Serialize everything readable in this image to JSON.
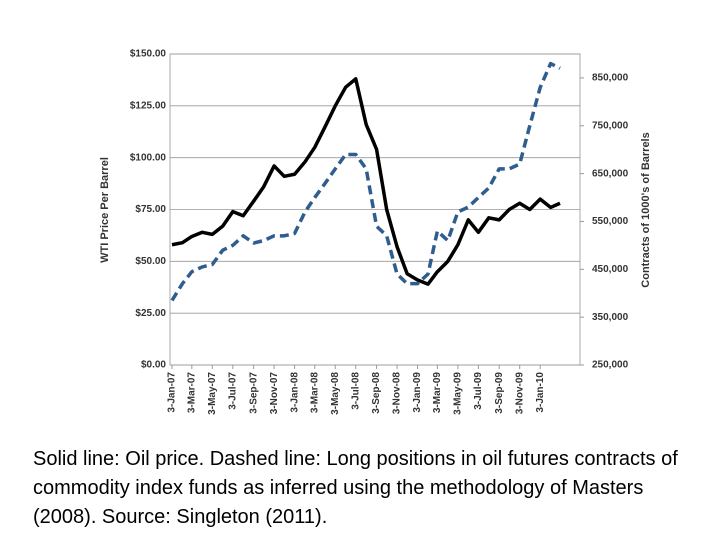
{
  "chart_data": {
    "type": "line",
    "x": [
      "3-Jan-07",
      "3-Feb-07",
      "3-Mar-07",
      "3-Apr-07",
      "3-May-07",
      "3-Jun-07",
      "3-Jul-07",
      "3-Aug-07",
      "3-Sep-07",
      "3-Oct-07",
      "3-Nov-07",
      "3-Dec-07",
      "3-Jan-08",
      "3-Feb-08",
      "3-Mar-08",
      "3-Apr-08",
      "3-May-08",
      "3-Jun-08",
      "3-Jul-08",
      "3-Aug-08",
      "3-Sep-08",
      "3-Oct-08",
      "3-Nov-08",
      "3-Dec-08",
      "3-Jan-09",
      "3-Feb-09",
      "3-Mar-09",
      "3-Apr-09",
      "3-May-09",
      "3-Jun-09",
      "3-Jul-09",
      "3-Aug-09",
      "3-Sep-09",
      "3-Oct-09",
      "3-Nov-09",
      "3-Dec-09",
      "3-Jan-10",
      "3-Feb-10",
      "3-Mar-10"
    ],
    "xlim": [
      "3-Jan-07",
      "3-Mar-10"
    ],
    "xticks": [
      "3-Jan-07",
      "3-Mar-07",
      "3-May-07",
      "3-Jul-07",
      "3-Sep-07",
      "3-Nov-07",
      "3-Jan-08",
      "3-Mar-08",
      "3-May-08",
      "3-Jul-08",
      "3-Sep-08",
      "3-Nov-08",
      "3-Jan-09",
      "3-Mar-09",
      "3-May-09",
      "3-Jul-09",
      "3-Sep-09",
      "3-Nov-09",
      "3-Jan-10"
    ],
    "y_label": "WTI Price Per Barrel",
    "y2_label": "Contracts of 1000's of Barrels",
    "ylim": [
      0,
      150
    ],
    "yticks": [
      {
        "value": 0,
        "label": "$0.00"
      },
      {
        "value": 25,
        "label": "$25.00"
      },
      {
        "value": 50,
        "label": "$50.00"
      },
      {
        "value": 75,
        "label": "$75.00"
      },
      {
        "value": 100,
        "label": "$100.00"
      },
      {
        "value": 125,
        "label": "$125.00"
      },
      {
        "value": 150,
        "label": "$150.00"
      }
    ],
    "y2lim": [
      250000,
      900000
    ],
    "y2ticks": [
      {
        "value": 250000,
        "label": "250,000"
      },
      {
        "value": 350000,
        "label": "350,000"
      },
      {
        "value": 450000,
        "label": "450,000"
      },
      {
        "value": 550000,
        "label": "550,000"
      },
      {
        "value": 650000,
        "label": "650,000"
      },
      {
        "value": 750000,
        "label": "750,000"
      },
      {
        "value": 850000,
        "label": "850,000"
      }
    ],
    "grid": true,
    "series": [
      {
        "color": "#000000",
        "style": "solid",
        "values": [
          58,
          59,
          62,
          64,
          63,
          67,
          74,
          72,
          79,
          86,
          96,
          91,
          92,
          98,
          105,
          115,
          125,
          134,
          138,
          116,
          104,
          75,
          57,
          44,
          41,
          39,
          45,
          50,
          58,
          70,
          64,
          71,
          70,
          75,
          78,
          75,
          80,
          76,
          78
        ]
      },
      {
        "color": "#2e5d8e",
        "style": "dashed",
        "axis": "y2",
        "values": [
          385000,
          420000,
          445000,
          455000,
          460000,
          490000,
          500000,
          520000,
          505000,
          510000,
          520000,
          520000,
          525000,
          570000,
          600000,
          630000,
          660000,
          690000,
          690000,
          660000,
          540000,
          520000,
          440000,
          420000,
          420000,
          440000,
          530000,
          510000,
          570000,
          580000,
          600000,
          620000,
          660000,
          660000,
          670000,
          750000,
          830000,
          880000,
          870000
        ]
      }
    ]
  },
  "caption": "Solid line: Oil price. Dashed line: Long positions in oil futures contracts of commodity index funds as inferred using the methodology of Masters (2008). Source: Singleton (2011)."
}
